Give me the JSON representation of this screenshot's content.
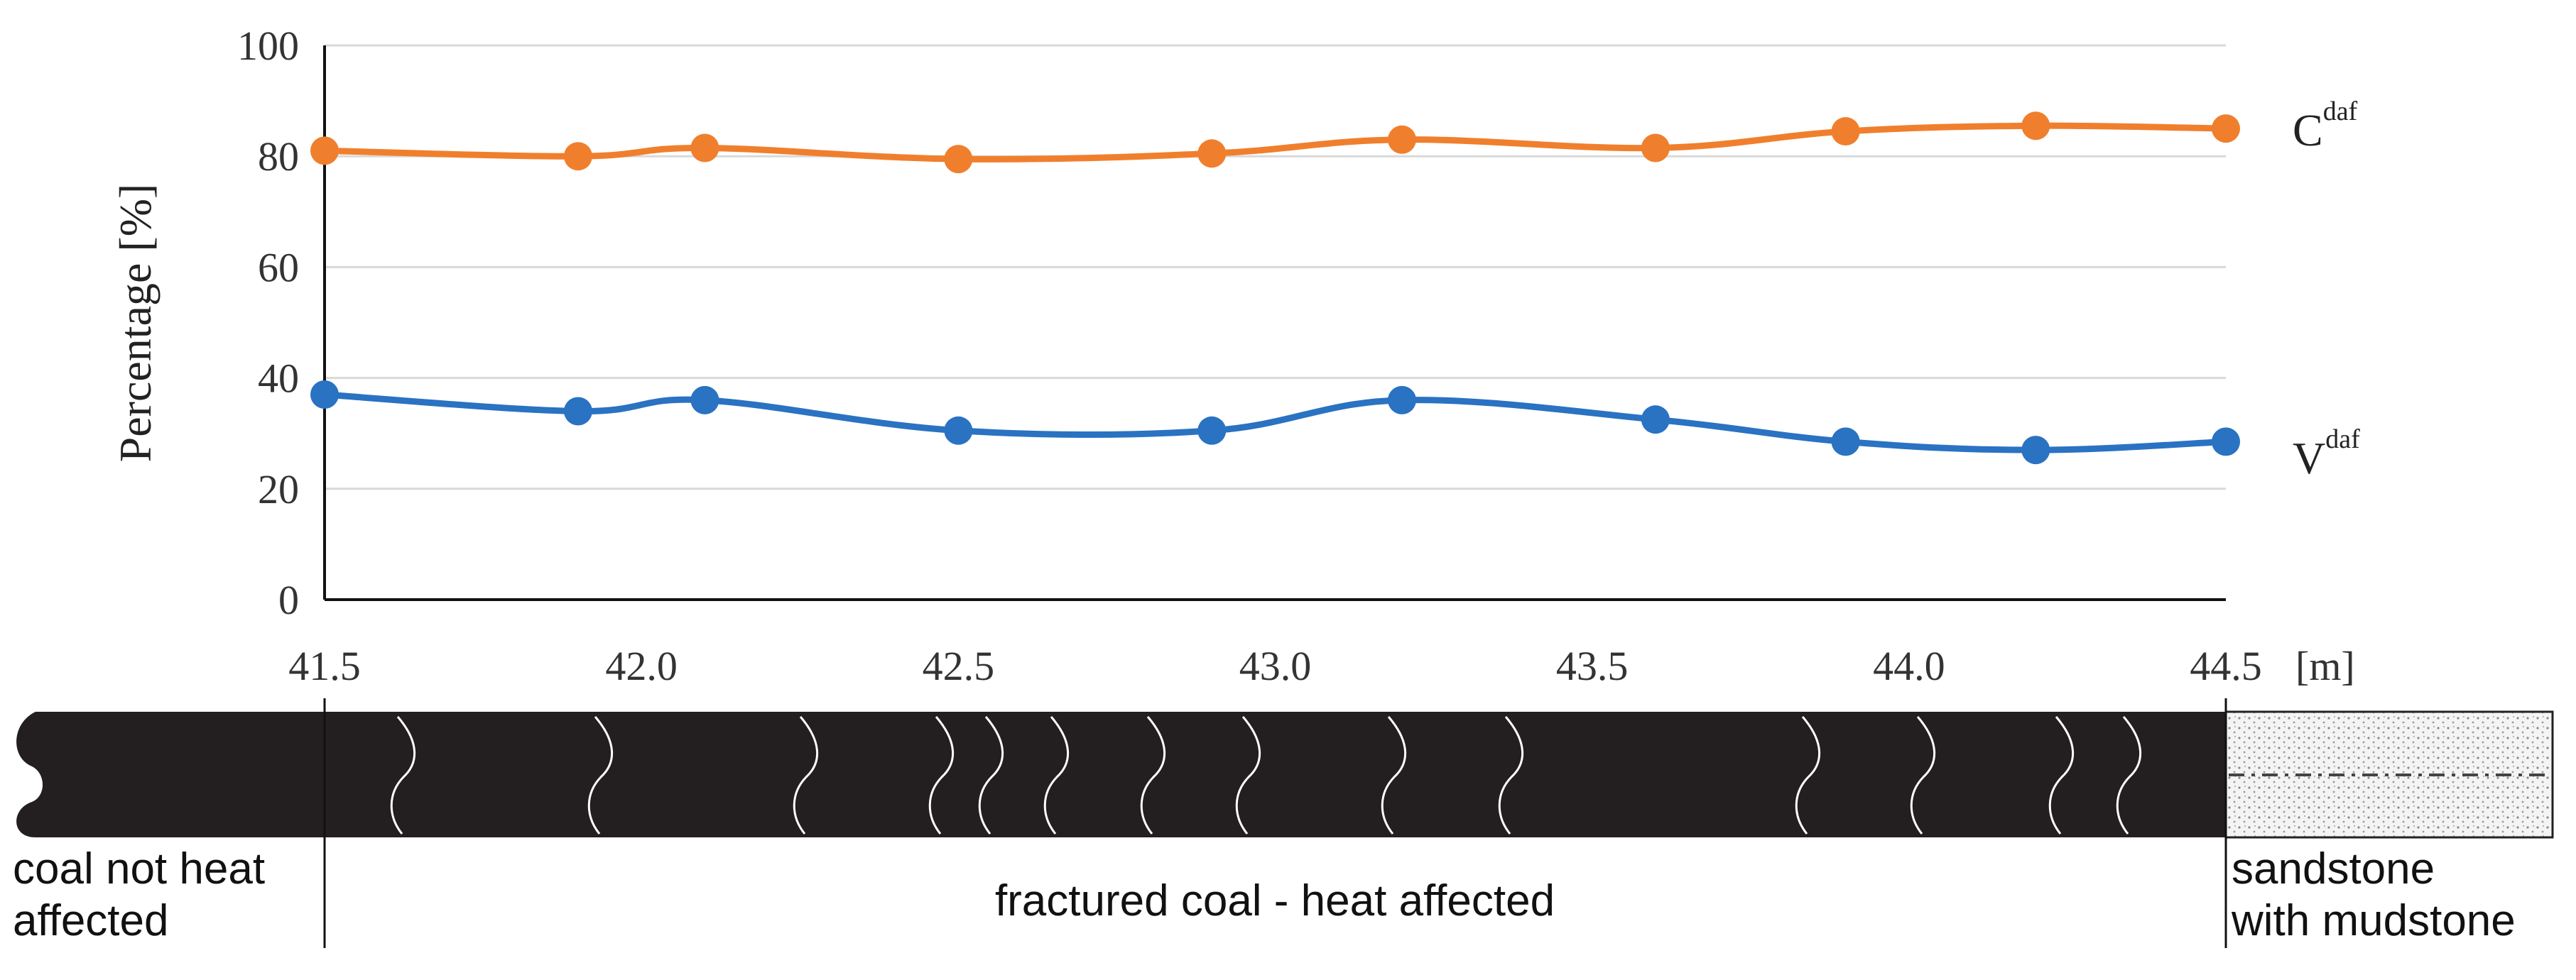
{
  "chart_data": {
    "type": "line",
    "title": "",
    "ylabel": "Percentage [%]",
    "xunit": "[m]",
    "xlim": [
      41.5,
      44.5
    ],
    "ylim": [
      0,
      100
    ],
    "xticks": [
      "41.5",
      "42.0",
      "42.5",
      "43.0",
      "43.5",
      "44.0",
      "44.5"
    ],
    "yticks": [
      "0",
      "20",
      "40",
      "60",
      "80",
      "100"
    ],
    "x": [
      41.5,
      41.9,
      42.1,
      42.5,
      42.9,
      43.2,
      43.6,
      43.9,
      44.2,
      44.5
    ],
    "series": [
      {
        "name": "C",
        "sup": "daf",
        "color": "#f07f2d",
        "values": [
          81,
          80,
          81.5,
          79.5,
          80.5,
          83,
          81.5,
          84.5,
          85.5,
          85
        ]
      },
      {
        "name": "V",
        "sup": "daf",
        "color": "#2a72c2",
        "values": [
          37,
          34,
          36,
          30.5,
          30.5,
          36,
          32.5,
          28.5,
          27,
          28.5
        ]
      }
    ],
    "grid": "horizontal"
  },
  "column": {
    "coal_not_heat_affected": {
      "line1": "coal not heat",
      "line2": "affected"
    },
    "fractured_coal": {
      "label": "fractured coal - heat affected"
    },
    "sandstone": {
      "line1": "sandstone",
      "line2": "with mudstone"
    },
    "coal_color": "#231f20"
  }
}
